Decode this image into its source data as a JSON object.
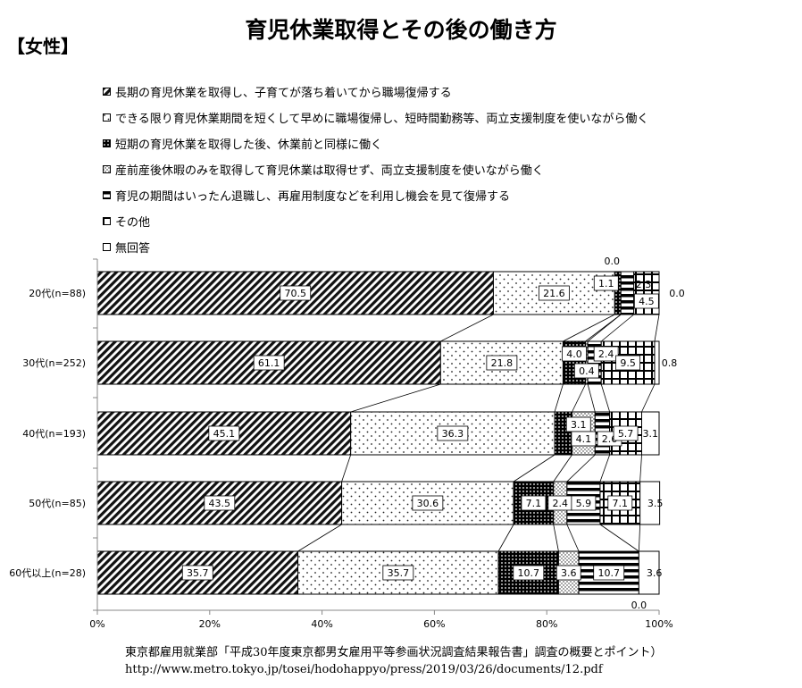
{
  "title": "育児休業取得とその後の働き方",
  "subtitle": "【女性】",
  "source": [
    "東京都雇用就業部「平成30年度東京都男女雇用平等参画状況調査結果報告書」調査の概要とポイント）",
    "http://www.metro.tokyo.jp/tosei/hodohappyo/press/2019/03/26/documents/12.pdf"
  ],
  "chart_data": {
    "type": "bar",
    "orientation": "horizontal",
    "stacked": "percent",
    "categories": [
      "20代(n=88)",
      "30代(n=252)",
      "40代(n=193)",
      "50代(n=85)",
      "60代以上(n=28)"
    ],
    "xlim": [
      0,
      100
    ],
    "xticks": [
      "0%",
      "20%",
      "40%",
      "60%",
      "80%",
      "100%"
    ],
    "legend_position": "top-left",
    "series": [
      {
        "name": "長期の育児休業を取得し、子育てが落ち着いてから職場復帰する",
        "pattern": "diagonal",
        "values": [
          70.5,
          61.1,
          45.1,
          43.5,
          35.7
        ],
        "labels": [
          "70.5",
          "61.1",
          "45.1",
          "43.5",
          "35.7"
        ]
      },
      {
        "name": "できる限り育児休業期間を短くして早めに職場復帰し、短時間勤務等、両立支援制度を使いながら働く",
        "pattern": "sparse-dots",
        "values": [
          21.6,
          21.8,
          36.3,
          30.6,
          35.7
        ],
        "labels": [
          "21.6",
          "21.8",
          "36.3",
          "30.6",
          "35.7"
        ]
      },
      {
        "name": "短期の育児休業を取得した後、休業前と同様に働く",
        "pattern": "dark-dots",
        "values": [
          1.1,
          4.0,
          3.1,
          7.1,
          10.7
        ],
        "labels": [
          "1.1",
          "4.0",
          "3.1",
          "7.1",
          "10.7"
        ]
      },
      {
        "name": "産前産後休暇のみを取得して育児休業は取得せず、両立支援制度を使いながら働く",
        "pattern": "small-dots",
        "values": [
          0.0,
          0.4,
          4.1,
          2.4,
          3.6
        ],
        "labels": [
          "0.0",
          "0.4",
          "4.1",
          "2.4",
          "3.6"
        ]
      },
      {
        "name": "育児の期間はいったん退職し、再雇用制度などを利用し機会を見て復帰する",
        "pattern": "horizontal-stripes",
        "values": [
          2.3,
          2.4,
          2.6,
          5.9,
          10.7
        ],
        "labels": [
          "2.3",
          "2.4",
          "2.6",
          "5.9",
          "10.7"
        ]
      },
      {
        "name": "その他",
        "pattern": "grid",
        "values": [
          4.5,
          9.5,
          5.7,
          7.1,
          0.0
        ],
        "labels": [
          "4.5",
          "9.5",
          "5.7",
          "7.1",
          "0.0"
        ]
      },
      {
        "name": "無回答",
        "pattern": "empty",
        "values": [
          0.0,
          0.8,
          3.1,
          3.5,
          3.6
        ],
        "labels": [
          "0.0",
          "0.8",
          "3.1",
          "3.5",
          "3.6"
        ]
      }
    ]
  }
}
